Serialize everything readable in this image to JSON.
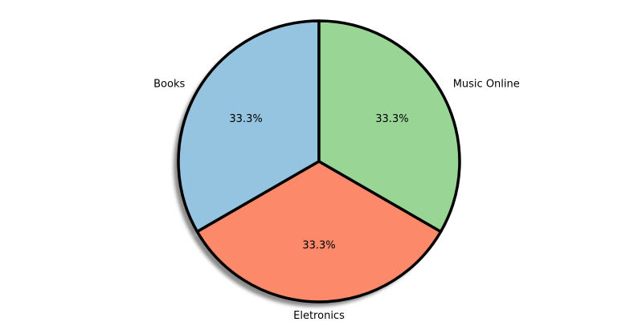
{
  "chart_data": {
    "type": "pie",
    "categories": [
      "Books",
      "Eletronics",
      "Music Online"
    ],
    "values": [
      33.3,
      33.3,
      33.3
    ],
    "percent_labels": [
      "33.3%",
      "33.3%",
      "33.3%"
    ],
    "colors": [
      "#94c4e0",
      "#fc8a6a",
      "#99d595"
    ],
    "edge_color": "#000000",
    "shadow": true,
    "title": ""
  }
}
